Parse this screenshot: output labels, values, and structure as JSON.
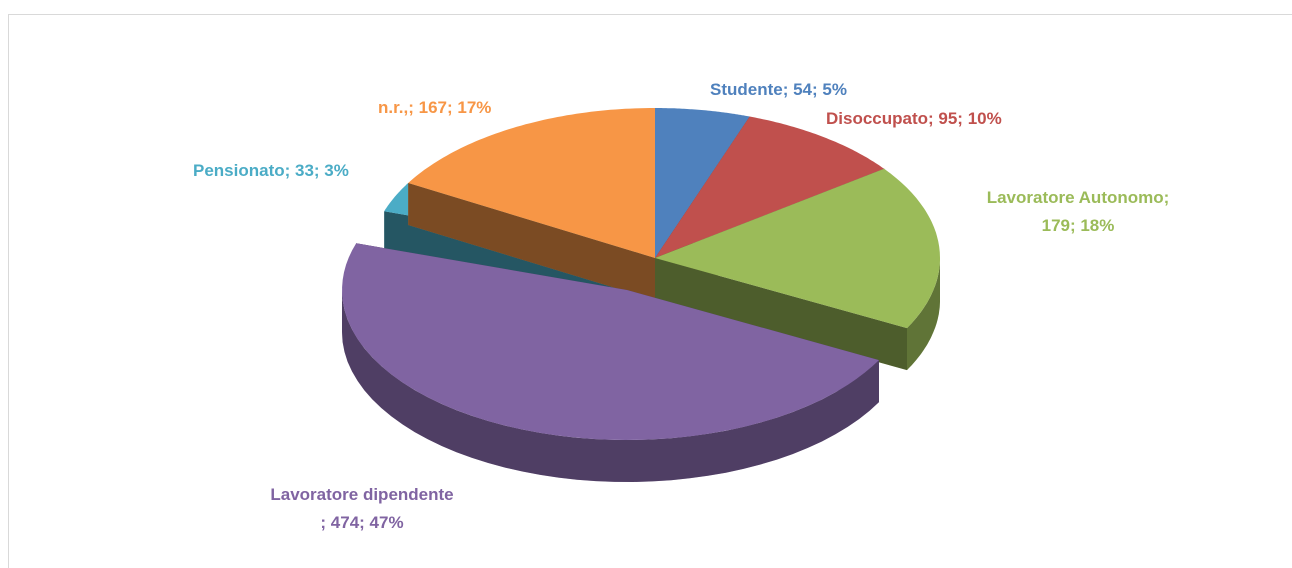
{
  "chart_data": {
    "type": "pie",
    "categories": [
      "Studente",
      "Disoccupato",
      "Lavoratore Autonomo",
      "Lavoratore dipendente",
      "Pensionato",
      "n.r.,"
    ],
    "values": [
      54,
      95,
      179,
      474,
      33,
      167
    ],
    "value_labels": [
      "Studente; 54; 5%",
      "Disoccupato; 95; 10%",
      "Lavoratore Autonomo;\n179; 18%",
      "Lavoratore dipendente\n; 474; 47%",
      "Pensionato; 33; 3%",
      "n.r.,; 167; 17%"
    ],
    "colors": [
      "#4f81bd",
      "#c0504d",
      "#9bbb59",
      "#8064a2",
      "#4bacc6",
      "#f79646"
    ]
  }
}
